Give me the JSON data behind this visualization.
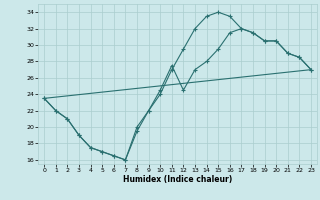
{
  "xlabel": "Humidex (Indice chaleur)",
  "xlim": [
    -0.5,
    23.5
  ],
  "ylim": [
    15.5,
    35.0
  ],
  "yticks": [
    16,
    18,
    20,
    22,
    24,
    26,
    28,
    30,
    32,
    34
  ],
  "xticks": [
    0,
    1,
    2,
    3,
    4,
    5,
    6,
    7,
    8,
    9,
    10,
    11,
    12,
    13,
    14,
    15,
    16,
    17,
    18,
    19,
    20,
    21,
    22,
    23
  ],
  "bg_color": "#cce8ea",
  "grid_color": "#aacece",
  "line_color": "#2a7070",
  "line1_x": [
    0,
    1,
    2,
    3,
    4,
    5,
    6,
    7,
    8,
    9,
    10,
    11,
    12,
    13,
    14,
    15,
    16,
    17,
    18,
    19,
    20,
    21,
    22,
    23
  ],
  "line1_y": [
    23.5,
    22.0,
    21.0,
    19.0,
    17.5,
    17.0,
    16.5,
    16.0,
    20.0,
    22.0,
    24.0,
    27.0,
    29.5,
    32.0,
    33.5,
    34.0,
    33.5,
    32.0,
    31.5,
    30.5,
    30.5,
    29.0,
    28.5,
    27.0
  ],
  "line2_x": [
    0,
    1,
    2,
    3,
    4,
    5,
    6,
    7,
    8,
    9,
    10,
    11,
    12,
    13,
    14,
    15,
    16,
    17,
    18,
    19,
    20,
    21,
    22,
    23
  ],
  "line2_y": [
    23.5,
    22.0,
    21.0,
    19.0,
    17.5,
    17.0,
    16.5,
    16.0,
    19.5,
    22.0,
    24.5,
    27.5,
    24.5,
    27.0,
    28.0,
    29.5,
    31.5,
    32.0,
    31.5,
    30.5,
    30.5,
    29.0,
    28.5,
    27.0
  ],
  "line3_x": [
    0,
    23
  ],
  "line3_y": [
    23.5,
    27.0
  ]
}
